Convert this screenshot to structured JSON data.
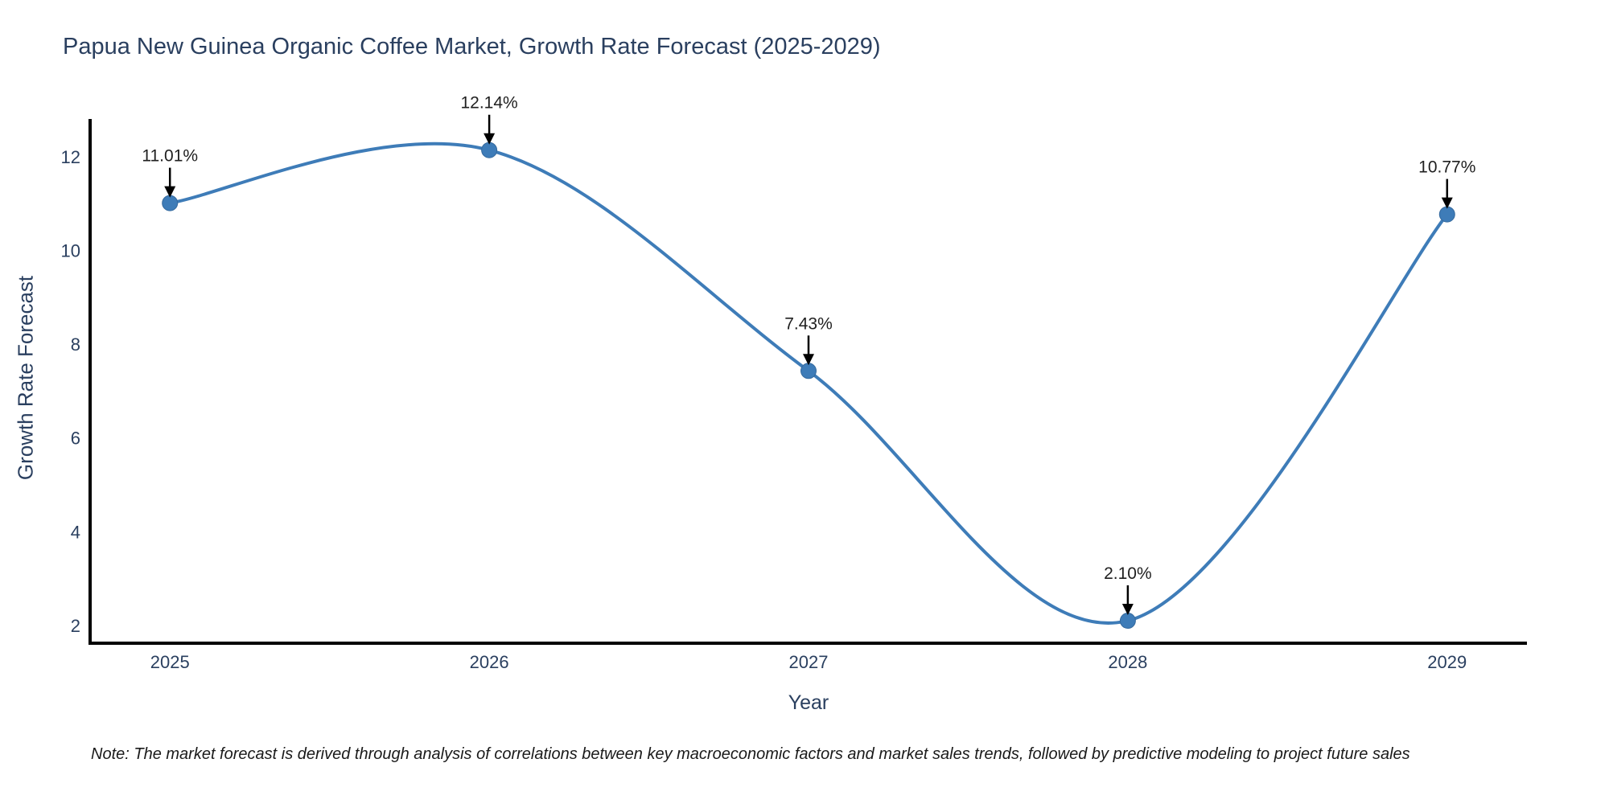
{
  "title": "Papua New Guinea Organic Coffee Market, Growth Rate Forecast (2025-2029)",
  "note": "Note: The market forecast is derived through analysis of correlations between key macroeconomic factors and market sales trends, followed by predictive modeling to project future sales",
  "chart_data": {
    "type": "line",
    "line_shape": "spline",
    "title": "Papua New Guinea Organic Coffee Market, Growth Rate Forecast (2025-2029)",
    "xlabel": "Year",
    "ylabel": "Growth Rate Forecast",
    "x": [
      2025,
      2026,
      2027,
      2028,
      2029
    ],
    "y": [
      11.01,
      12.14,
      7.43,
      2.1,
      10.77
    ],
    "point_labels": [
      "11.01%",
      "12.14%",
      "7.43%",
      "2.10%",
      "10.77%"
    ],
    "x_tick_labels": [
      "2025",
      "2026",
      "2027",
      "2028",
      "2029"
    ],
    "y_ticks": [
      2,
      4,
      6,
      8,
      10,
      12
    ],
    "xlim": [
      2024.75,
      2029.25
    ],
    "ylim": [
      1.62,
      12.77
    ],
    "grid": false,
    "legend": false,
    "annotation_arrows": true,
    "colors": {
      "line": "#3e7cb8",
      "marker": "#3e7cb8",
      "marker_edge": "#35699d",
      "axis": "#000000",
      "tick_label": "#2a3f5f",
      "title": "#2a3f5f",
      "annotation_text": "#1f1f1f",
      "annotation_arrow": "#000000"
    }
  }
}
